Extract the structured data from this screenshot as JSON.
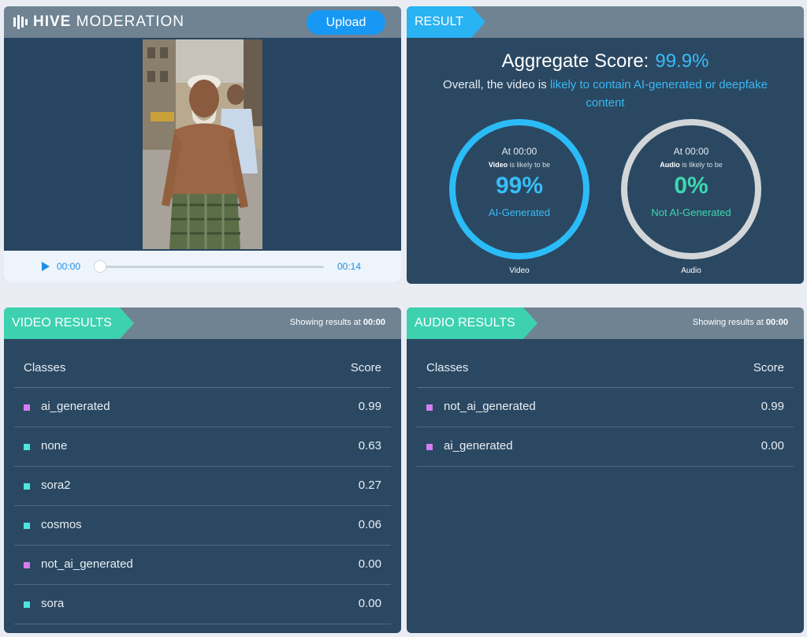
{
  "brand": {
    "bold": "HIVE",
    "thin": "MODERATION"
  },
  "upload_label": "Upload",
  "player": {
    "current_time": "00:00",
    "duration": "00:14"
  },
  "result": {
    "tag": "RESULT",
    "aggregate_label": "Aggregate Score:",
    "aggregate_value": "99.9%",
    "overall_prefix": "Overall, the video is ",
    "overall_highlight": "likely to contain AI-generated or deepfake content",
    "video_gauge": {
      "at": "At 00:00",
      "media": "Video",
      "likely": " is likely to be",
      "pct": "99%",
      "label": "AI-Generated",
      "caption": "Video"
    },
    "audio_gauge": {
      "at": "At 00:00",
      "media": "Audio",
      "likely": " is likely to be",
      "pct": "0%",
      "label": "Not AI-Generated",
      "caption": "Audio"
    }
  },
  "colors": {
    "ai": "#d67cf2",
    "other": "#4de6e0",
    "accent": "#2bbcf7",
    "green": "#3dd1b0"
  },
  "video_results": {
    "tag": "VIDEO RESULTS",
    "showing_prefix": "Showing results at ",
    "showing_time": "00:00",
    "col_classes": "Classes",
    "col_score": "Score",
    "rows": [
      {
        "name": "ai_generated",
        "score": "0.99",
        "color": "#d67cf2"
      },
      {
        "name": "none",
        "score": "0.63",
        "color": "#4de6e0"
      },
      {
        "name": "sora2",
        "score": "0.27",
        "color": "#4de6e0"
      },
      {
        "name": "cosmos",
        "score": "0.06",
        "color": "#4de6e0"
      },
      {
        "name": "not_ai_generated",
        "score": "0.00",
        "color": "#d67cf2"
      },
      {
        "name": "sora",
        "score": "0.00",
        "color": "#4de6e0"
      }
    ]
  },
  "audio_results": {
    "tag": "AUDIO RESULTS",
    "showing_prefix": "Showing results at ",
    "showing_time": "00:00",
    "col_classes": "Classes",
    "col_score": "Score",
    "rows": [
      {
        "name": "not_ai_generated",
        "score": "0.99",
        "color": "#d67cf2"
      },
      {
        "name": "ai_generated",
        "score": "0.00",
        "color": "#d67cf2"
      }
    ]
  }
}
